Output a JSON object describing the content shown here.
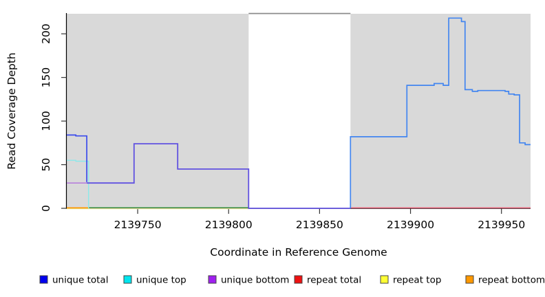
{
  "chart_data": {
    "type": "line",
    "step": true,
    "title": "",
    "xlabel": "Coordinate in Reference Genome",
    "ylabel": "Read Coverage Depth",
    "xlim": [
      2139711,
      2139966
    ],
    "ylim": [
      0,
      223
    ],
    "x_ticks": [
      2139750,
      2139800,
      2139850,
      2139900,
      2139950
    ],
    "y_ticks": [
      0,
      50,
      100,
      150,
      200
    ],
    "grid": false,
    "shaded_region_color": "#d9d9d9",
    "shaded_regions": [
      [
        2139711,
        2139811
      ],
      [
        2139867,
        2139966
      ]
    ],
    "masked_region": {
      "from": 2139811,
      "to": 2139867,
      "top_border_color": "#8c8c8c"
    },
    "legend_position": "bottom",
    "legend": [
      {
        "label": "unique total",
        "color": "#0000ee"
      },
      {
        "label": "unique top",
        "color": "#00e5ee"
      },
      {
        "label": "unique bottom",
        "color": "#a020f0"
      },
      {
        "label": "repeat total",
        "color": "#ee1111"
      },
      {
        "label": "repeat top",
        "color": "#ffff33"
      },
      {
        "label": "repeat bottom",
        "color": "#ff9800"
      }
    ],
    "series": [
      {
        "name": "unique total",
        "points": [
          [
            2139711,
            84
          ],
          [
            2139716,
            83
          ],
          [
            2139722,
            29
          ],
          [
            2139748,
            74
          ],
          [
            2139772,
            45
          ],
          [
            2139811,
            0
          ],
          [
            2139867,
            82
          ],
          [
            2139898,
            141
          ],
          [
            2139913,
            143
          ],
          [
            2139918,
            141
          ],
          [
            2139921,
            218
          ],
          [
            2139928,
            214
          ],
          [
            2139930,
            136
          ],
          [
            2139934,
            134
          ],
          [
            2139937,
            135
          ],
          [
            2139952,
            134
          ],
          [
            2139954,
            131
          ],
          [
            2139957,
            130
          ],
          [
            2139960,
            75
          ],
          [
            2139963,
            73
          ],
          [
            2139966,
            73
          ]
        ]
      },
      {
        "name": "unique top",
        "points": [
          [
            2139711,
            55
          ],
          [
            2139716,
            54
          ],
          [
            2139723,
            0
          ],
          [
            2139811,
            0
          ]
        ]
      },
      {
        "name": "unique bottom",
        "points": [
          [
            2139711,
            29
          ],
          [
            2139748,
            74
          ],
          [
            2139772,
            45
          ],
          [
            2139811,
            0
          ],
          [
            2139867,
            0
          ]
        ]
      },
      {
        "name": "repeat total",
        "points": [
          [
            2139867,
            0
          ],
          [
            2139966,
            0
          ]
        ]
      },
      {
        "name": "repeat top",
        "points": [
          [
            2139711,
            0
          ],
          [
            2139811,
            0
          ]
        ]
      },
      {
        "name": "repeat bottom",
        "points": [
          [
            2139711,
            0
          ],
          [
            2139723,
            0
          ]
        ]
      }
    ],
    "visible_lines": [
      {
        "name": "repeat-top-zero-line",
        "color": "#e4e89c",
        "width": 1.3,
        "points": [
          [
            2139711,
            -0.5
          ],
          [
            2139811,
            -0.5
          ]
        ]
      },
      {
        "name": "zero-overlap-green-line",
        "color": "#56b45c",
        "width": 1.3,
        "points": [
          [
            2139723,
            0.9
          ],
          [
            2139811,
            0.9
          ]
        ]
      },
      {
        "name": "repeat-bottom-zero-line",
        "color": "#ff9800",
        "width": 1.7,
        "points": [
          [
            2139711,
            0.5
          ],
          [
            2139723,
            0.5
          ]
        ]
      },
      {
        "name": "repeat-total-zero-line",
        "color": "#e45a72",
        "width": 1.5,
        "points": [
          [
            2139867,
            0.5
          ],
          [
            2139966,
            0.5
          ]
        ]
      },
      {
        "name": "unique-top-line",
        "color": "#8ce9ea",
        "width": 1.4,
        "points": [
          [
            2139711,
            55
          ],
          [
            2139716,
            55
          ],
          [
            2139716,
            54
          ],
          [
            2139723,
            54
          ],
          [
            2139723,
            0
          ]
        ]
      },
      {
        "name": "unique-bottom-line",
        "color": "#b06fdc",
        "width": 1.4,
        "points": [
          [
            2139711,
            29
          ],
          [
            2139722,
            29
          ]
        ]
      },
      {
        "name": "unique-bottom-total-overlap-line",
        "color": "#6051e0",
        "width": 1.8,
        "points": [
          [
            2139722,
            29
          ],
          [
            2139748,
            29
          ],
          [
            2139748,
            74
          ],
          [
            2139772,
            74
          ],
          [
            2139772,
            45
          ],
          [
            2139811,
            45
          ],
          [
            2139811,
            0
          ],
          [
            2139867,
            0
          ]
        ]
      },
      {
        "name": "unique-total-left-line",
        "color": "#3a4aec",
        "width": 1.7,
        "points": [
          [
            2139711,
            84
          ],
          [
            2139716,
            84
          ],
          [
            2139716,
            83
          ],
          [
            2139722,
            83
          ],
          [
            2139722,
            30
          ]
        ]
      },
      {
        "name": "unique-total-right-line",
        "color": "#4285f0",
        "width": 1.7,
        "points": [
          [
            2139867,
            0
          ],
          [
            2139867,
            82
          ],
          [
            2139898,
            82
          ],
          [
            2139898,
            141
          ],
          [
            2139913,
            141
          ],
          [
            2139913,
            143
          ],
          [
            2139918,
            143
          ],
          [
            2139918,
            141
          ],
          [
            2139921,
            141
          ],
          [
            2139921,
            218
          ],
          [
            2139928,
            218
          ],
          [
            2139928,
            214
          ],
          [
            2139930,
            214
          ],
          [
            2139930,
            136
          ],
          [
            2139934,
            136
          ],
          [
            2139934,
            134
          ],
          [
            2139937,
            134
          ],
          [
            2139937,
            135
          ],
          [
            2139952,
            135
          ],
          [
            2139952,
            134
          ],
          [
            2139954,
            134
          ],
          [
            2139954,
            131
          ],
          [
            2139957,
            131
          ],
          [
            2139957,
            130
          ],
          [
            2139960,
            130
          ],
          [
            2139960,
            75
          ],
          [
            2139963,
            75
          ],
          [
            2139963,
            73
          ],
          [
            2139966,
            73
          ]
        ]
      }
    ]
  }
}
